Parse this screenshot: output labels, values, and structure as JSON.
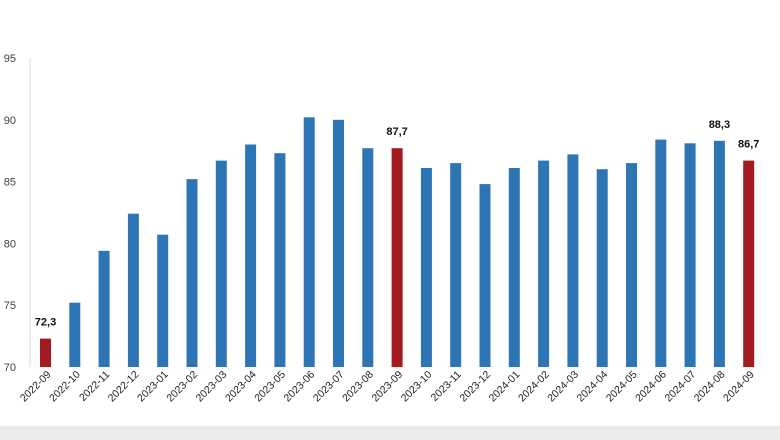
{
  "chart_data": {
    "type": "bar",
    "categories": [
      "2022-09",
      "2022-10",
      "2022-11",
      "2022-12",
      "2023-01",
      "2023-02",
      "2023-03",
      "2023-04",
      "2023-05",
      "2023-06",
      "2023-07",
      "2023-08",
      "2023-09",
      "2023-10",
      "2023-11",
      "2023-12",
      "2024-01",
      "2024-02",
      "2024-03",
      "2024-04",
      "2024-05",
      "2024-06",
      "2024-07",
      "2024-08",
      "2024-09"
    ],
    "values": [
      72.3,
      75.2,
      79.4,
      82.4,
      80.7,
      85.2,
      86.7,
      88.0,
      87.3,
      90.2,
      90.0,
      87.7,
      87.7,
      86.1,
      86.5,
      84.8,
      86.1,
      86.7,
      87.2,
      86.0,
      86.5,
      88.4,
      88.1,
      88.3,
      86.7
    ],
    "highlighted": [
      "2022-09",
      "2023-09",
      "2024-09"
    ],
    "data_labels": [
      {
        "category": "2022-09",
        "text": "72,3"
      },
      {
        "category": "2023-09",
        "text": "87,7"
      },
      {
        "category": "2024-08",
        "text": "88,3"
      },
      {
        "category": "2024-09",
        "text": "86,7"
      }
    ],
    "yticks": [
      "70",
      "75",
      "80",
      "85",
      "90",
      "95"
    ],
    "ylim": [
      70,
      95
    ],
    "grid": false,
    "colors": {
      "bar": "#2e75b6",
      "highlight": "#a31b20"
    }
  }
}
